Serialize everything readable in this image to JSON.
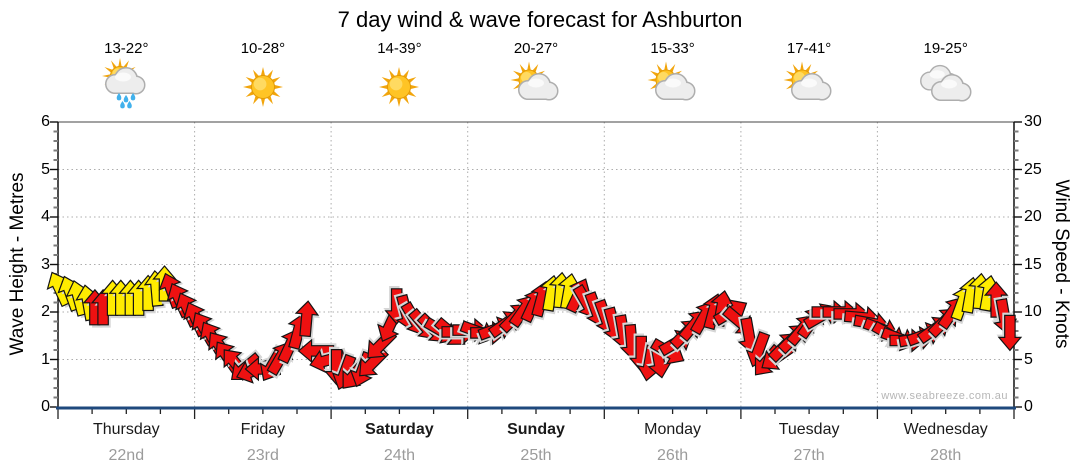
{
  "title": "7 day wind & wave forecast for Ashburton",
  "watermark": "www.seabreeze.com.au",
  "axes": {
    "left": {
      "label": "Wave Height - Metres",
      "ticks": [
        "0",
        "1",
        "2",
        "3",
        "4",
        "5",
        "6"
      ],
      "range": [
        0,
        6
      ]
    },
    "right": {
      "label": "Wind Speed - Knots",
      "ticks": [
        "0",
        "5",
        "10",
        "15",
        "20",
        "25",
        "30"
      ],
      "range": [
        0,
        30
      ]
    }
  },
  "days": [
    {
      "name": "Thursday",
      "date": "22nd",
      "temp": "13-22°",
      "icon": "sun-cloud-rain",
      "bold": false
    },
    {
      "name": "Friday",
      "date": "23rd",
      "temp": "10-28°",
      "icon": "sun",
      "bold": false
    },
    {
      "name": "Saturday",
      "date": "24th",
      "temp": "14-39°",
      "icon": "sun",
      "bold": true
    },
    {
      "name": "Sunday",
      "date": "25th",
      "temp": "20-27°",
      "icon": "sun-cloud",
      "bold": true
    },
    {
      "name": "Monday",
      "date": "26th",
      "temp": "15-33°",
      "icon": "sun-cloud",
      "bold": false
    },
    {
      "name": "Tuesday",
      "date": "27th",
      "temp": "17-41°",
      "icon": "sun-cloud",
      "bold": false
    },
    {
      "name": "Wednesday",
      "date": "28th",
      "temp": "19-25°",
      "icon": "clouds",
      "bold": false
    }
  ],
  "colors": {
    "arrow_red": "#ee1111",
    "arrow_yellow": "#ffec00",
    "arrow_outline": "#141414",
    "arrow_shadow": "#d6d6d6",
    "grid": "#adadad",
    "bottom_axis": "#1f497d",
    "date_gray": "#9b9b9b",
    "watermark_gray": "#b6b6b6"
  },
  "chart_data": {
    "type": "wind-arrow-timeseries",
    "title": "7 day wind & wave forecast for Ashburton",
    "xlabel_days": [
      "Thursday 22nd",
      "Friday 23rd",
      "Saturday 24th",
      "Sunday 25th",
      "Monday 26th",
      "Tuesday 27th",
      "Wednesday 28th"
    ],
    "y_left": {
      "label": "Wave Height - Metres",
      "range": [
        0,
        6
      ]
    },
    "y_right": {
      "label": "Wind Speed - Knots",
      "range": [
        0,
        30
      ]
    },
    "gridlines": {
      "h_knots": [
        5,
        10,
        15,
        20,
        25
      ],
      "v_day_boundaries": [
        1,
        2,
        3,
        4,
        5,
        6
      ]
    },
    "arrow_fields": [
      "day_offset",
      "knots",
      "direction_deg_cw_from_up",
      "color"
    ],
    "arrows": [
      [
        0.01,
        12.5,
        -25,
        "y"
      ],
      [
        0.09,
        12.0,
        -20,
        "y"
      ],
      [
        0.15,
        11.5,
        -15,
        "y"
      ],
      [
        0.22,
        11.0,
        -10,
        "y"
      ],
      [
        0.27,
        10.5,
        0,
        "r"
      ],
      [
        0.33,
        10.5,
        0,
        "r"
      ],
      [
        0.4,
        11.5,
        0,
        "y"
      ],
      [
        0.46,
        11.5,
        0,
        "y"
      ],
      [
        0.53,
        11.5,
        0,
        "y"
      ],
      [
        0.59,
        11.5,
        0,
        "y"
      ],
      [
        0.66,
        12.0,
        0,
        "y"
      ],
      [
        0.72,
        12.5,
        -5,
        "y"
      ],
      [
        0.78,
        13.0,
        0,
        "y"
      ],
      [
        0.83,
        12.3,
        -20,
        "r"
      ],
      [
        0.89,
        11.3,
        -25,
        "r"
      ],
      [
        0.95,
        10.3,
        -25,
        "r"
      ],
      [
        1.01,
        9.3,
        -25,
        "r"
      ],
      [
        1.07,
        8.3,
        -30,
        "r"
      ],
      [
        1.13,
        7.3,
        -30,
        "r"
      ],
      [
        1.19,
        6.3,
        -35,
        "r"
      ],
      [
        1.24,
        5.3,
        -35,
        "r"
      ],
      [
        1.3,
        4.6,
        -40,
        "r"
      ],
      [
        1.37,
        4.1,
        230,
        "r"
      ],
      [
        1.43,
        3.8,
        250,
        "r"
      ],
      [
        1.5,
        4.0,
        270,
        "r"
      ],
      [
        1.57,
        4.4,
        210,
        "r"
      ],
      [
        1.63,
        5.2,
        30,
        "r"
      ],
      [
        1.7,
        6.5,
        25,
        "r"
      ],
      [
        1.76,
        8.0,
        15,
        "r"
      ],
      [
        1.82,
        9.3,
        5,
        "r"
      ],
      [
        1.89,
        5.9,
        270,
        "r"
      ],
      [
        1.97,
        4.9,
        255,
        "r"
      ],
      [
        2.04,
        4.2,
        180,
        "r"
      ],
      [
        2.1,
        3.6,
        200,
        "r"
      ],
      [
        2.17,
        3.4,
        220,
        "r"
      ],
      [
        2.23,
        3.9,
        200,
        "r"
      ],
      [
        2.3,
        4.6,
        225,
        "r"
      ],
      [
        2.36,
        6.5,
        225,
        "r"
      ],
      [
        2.43,
        8.6,
        205,
        "r"
      ],
      [
        2.48,
        10.6,
        180,
        "r"
      ],
      [
        2.55,
        9.9,
        165,
        "r"
      ],
      [
        2.61,
        9.2,
        150,
        "r"
      ],
      [
        2.68,
        8.6,
        140,
        "r"
      ],
      [
        2.75,
        8.2,
        135,
        "r"
      ],
      [
        2.81,
        8.0,
        120,
        "r"
      ],
      [
        2.88,
        7.8,
        130,
        "r"
      ],
      [
        2.94,
        7.9,
        90,
        "r"
      ],
      [
        3.02,
        8.1,
        90,
        "r"
      ],
      [
        3.08,
        7.9,
        110,
        "r"
      ],
      [
        3.15,
        7.8,
        90,
        "r"
      ],
      [
        3.21,
        8.2,
        70,
        "r"
      ],
      [
        3.28,
        8.8,
        55,
        "r"
      ],
      [
        3.35,
        9.5,
        45,
        "r"
      ],
      [
        3.41,
        10.2,
        35,
        "r"
      ],
      [
        3.48,
        10.8,
        25,
        "r"
      ],
      [
        3.54,
        11.4,
        15,
        "r"
      ],
      [
        3.61,
        12.0,
        10,
        "y"
      ],
      [
        3.68,
        12.3,
        5,
        "y"
      ],
      [
        3.74,
        12.2,
        10,
        "y"
      ],
      [
        3.81,
        11.8,
        25,
        "r"
      ],
      [
        3.87,
        11.0,
        150,
        "r"
      ],
      [
        3.94,
        10.2,
        160,
        "r"
      ],
      [
        4.01,
        9.4,
        160,
        "r"
      ],
      [
        4.07,
        8.6,
        165,
        "r"
      ],
      [
        4.14,
        7.8,
        170,
        "r"
      ],
      [
        4.2,
        6.8,
        175,
        "r"
      ],
      [
        4.27,
        5.6,
        180,
        "r"
      ],
      [
        4.33,
        4.6,
        190,
        "r"
      ],
      [
        4.4,
        4.9,
        170,
        "r"
      ],
      [
        4.47,
        5.8,
        120,
        "r"
      ],
      [
        4.53,
        6.8,
        60,
        "r"
      ],
      [
        4.6,
        7.8,
        45,
        "r"
      ],
      [
        4.66,
        8.7,
        40,
        "r"
      ],
      [
        4.73,
        9.5,
        30,
        "r"
      ],
      [
        4.8,
        10.1,
        15,
        "r"
      ],
      [
        4.86,
        10.4,
        10,
        "r"
      ],
      [
        4.93,
        10.0,
        60,
        "r"
      ],
      [
        4.99,
        9.0,
        130,
        "r"
      ],
      [
        5.06,
        7.5,
        170,
        "r"
      ],
      [
        5.13,
        6.0,
        200,
        "r"
      ],
      [
        5.19,
        4.8,
        220,
        "r"
      ],
      [
        5.26,
        5.2,
        235,
        "r"
      ],
      [
        5.32,
        6.4,
        45,
        "r"
      ],
      [
        5.39,
        7.3,
        45,
        "r"
      ],
      [
        5.45,
        8.2,
        40,
        "r"
      ],
      [
        5.52,
        9.0,
        35,
        "r"
      ],
      [
        5.59,
        9.6,
        60,
        "r"
      ],
      [
        5.65,
        10.0,
        90,
        "r"
      ],
      [
        5.73,
        10.0,
        90,
        "r"
      ],
      [
        5.81,
        9.8,
        90,
        "r"
      ],
      [
        5.89,
        9.4,
        95,
        "r"
      ],
      [
        5.96,
        8.8,
        100,
        "r"
      ],
      [
        6.03,
        8.2,
        110,
        "r"
      ],
      [
        6.09,
        7.6,
        120,
        "r"
      ],
      [
        6.16,
        7.2,
        110,
        "r"
      ],
      [
        6.22,
        7.0,
        90,
        "r"
      ],
      [
        6.29,
        7.2,
        80,
        "r"
      ],
      [
        6.35,
        7.6,
        70,
        "r"
      ],
      [
        6.42,
        8.2,
        55,
        "r"
      ],
      [
        6.49,
        9.0,
        45,
        "r"
      ],
      [
        6.55,
        10.0,
        35,
        "r"
      ],
      [
        6.62,
        11.0,
        20,
        "y"
      ],
      [
        6.68,
        11.8,
        10,
        "y"
      ],
      [
        6.75,
        12.2,
        5,
        "y"
      ],
      [
        6.81,
        12.0,
        10,
        "y"
      ],
      [
        6.87,
        11.3,
        0,
        "r"
      ],
      [
        6.93,
        9.5,
        170,
        "r"
      ],
      [
        6.97,
        7.8,
        180,
        "r"
      ]
    ]
  }
}
